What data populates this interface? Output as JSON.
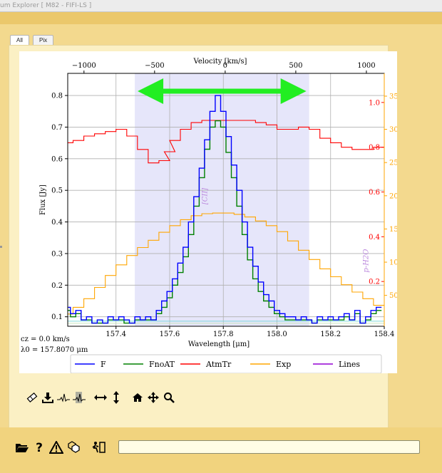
{
  "window": {
    "title": "um Explorer [ M82 - FIFI-LS ]"
  },
  "tabs": [
    {
      "label": "All",
      "active": true
    },
    {
      "label": "Pix",
      "active": false
    }
  ],
  "toolbar": {
    "icons": [
      "eraser-icon",
      "download-icon",
      "spectrum-fit-icon",
      "spectrum-select-icon",
      "horizontal-zoom-icon",
      "vertical-zoom-icon",
      "home-icon",
      "pan-icon",
      "zoom-icon"
    ]
  },
  "footer": {
    "icons": [
      "open-folder-icon",
      "help-icon",
      "warning-icon",
      "cubes-icon",
      "exit-icon"
    ],
    "command_value": ""
  },
  "colors": {
    "F": "#0000ff",
    "FnoAT": "#008000",
    "AtmTr": "#ff0000",
    "Exp": "#ffa500",
    "Lines": "#9400d3",
    "region": "#e6e6fa",
    "arrow": "#22ee22",
    "label": "#bb88dd"
  },
  "chart_data": {
    "type": "line",
    "xlabel": "Wavelength [μm]",
    "ylabel": "Flux [Jy]",
    "top_xlabel": "Velocity [km/s]",
    "xlim": [
      157.22,
      158.4
    ],
    "ylim": [
      0.07,
      0.87
    ],
    "xticks": [
      157.4,
      157.6,
      157.8,
      158.0,
      158.2,
      158.4
    ],
    "xticklabels": [
      "157.4",
      "157.6",
      "157.8",
      "158.0",
      "158.2",
      "158.4"
    ],
    "yticks": [
      0.1,
      0.2,
      0.3,
      0.4,
      0.5,
      0.6,
      0.7,
      0.8
    ],
    "yticklabels": [
      "0.1",
      "0.2",
      "0.3",
      "0.4",
      "0.5",
      "0.6",
      "0.7",
      "0.8"
    ],
    "vel_ticks": [
      -1000,
      -500,
      0,
      500,
      1000
    ],
    "vel_ticklabels": [
      "−1000",
      "−500",
      "0",
      "500",
      "1000"
    ],
    "rest_wavelength": 157.807,
    "atm_ylim": [
      0.0,
      1.13
    ],
    "atm_ticks": [
      0.2,
      0.4,
      0.6,
      0.8,
      1.0
    ],
    "atm_ticklabels": [
      "0.2",
      "0.4",
      "0.6",
      "0.8",
      "1.0"
    ],
    "exp_ylim": [
      3.5,
      384.3
    ],
    "exp_ticks": [
      50,
      100,
      150,
      200,
      250,
      300,
      350
    ],
    "exp_ticklabels": [
      "50",
      "100",
      "150",
      "200",
      "250",
      "300",
      "350"
    ],
    "region": [
      157.47,
      158.12
    ],
    "continuum": 0.086,
    "line_labels": [
      {
        "text": "[CII]",
        "x": 157.74,
        "y": 0.455
      },
      {
        "text": "p-H2O",
        "x": 158.34,
        "y": 0.24
      }
    ],
    "annotations": [
      "cz = 0.0 km/s",
      "λ0 = 157.8070 μm"
    ],
    "series": [
      {
        "name": "F",
        "axis": "flux",
        "x": [
          157.22,
          157.24,
          157.26,
          157.28,
          157.3,
          157.32,
          157.34,
          157.36,
          157.38,
          157.4,
          157.42,
          157.44,
          157.46,
          157.48,
          157.5,
          157.52,
          157.54,
          157.56,
          157.58,
          157.6,
          157.62,
          157.64,
          157.66,
          157.68,
          157.7,
          157.72,
          157.74,
          157.76,
          157.78,
          157.8,
          157.82,
          157.84,
          157.86,
          157.88,
          157.9,
          157.92,
          157.94,
          157.96,
          157.98,
          158.0,
          158.02,
          158.04,
          158.06,
          158.08,
          158.1,
          158.12,
          158.14,
          158.16,
          158.18,
          158.2,
          158.22,
          158.24,
          158.26,
          158.28,
          158.3,
          158.32,
          158.34,
          158.36,
          158.38
        ],
        "y": [
          0.13,
          0.11,
          0.12,
          0.09,
          0.1,
          0.08,
          0.09,
          0.08,
          0.1,
          0.09,
          0.1,
          0.09,
          0.08,
          0.1,
          0.09,
          0.1,
          0.09,
          0.12,
          0.15,
          0.18,
          0.22,
          0.27,
          0.32,
          0.4,
          0.48,
          0.57,
          0.66,
          0.75,
          0.8,
          0.75,
          0.67,
          0.58,
          0.5,
          0.4,
          0.32,
          0.26,
          0.21,
          0.17,
          0.15,
          0.12,
          0.11,
          0.1,
          0.1,
          0.09,
          0.1,
          0.09,
          0.08,
          0.1,
          0.09,
          0.1,
          0.09,
          0.1,
          0.11,
          0.09,
          0.12,
          0.08,
          0.1,
          0.12,
          0.13
        ]
      },
      {
        "name": "FnoAT",
        "axis": "flux",
        "x": [
          157.22,
          157.24,
          157.26,
          157.28,
          157.3,
          157.32,
          157.34,
          157.36,
          157.38,
          157.4,
          157.42,
          157.44,
          157.46,
          157.48,
          157.5,
          157.52,
          157.54,
          157.56,
          157.58,
          157.6,
          157.62,
          157.64,
          157.66,
          157.68,
          157.7,
          157.72,
          157.74,
          157.76,
          157.78,
          157.8,
          157.82,
          157.84,
          157.86,
          157.88,
          157.9,
          157.92,
          157.94,
          157.96,
          157.98,
          158.0,
          158.02,
          158.04,
          158.06,
          158.08,
          158.1,
          158.12,
          158.14,
          158.16,
          158.18,
          158.2,
          158.22,
          158.24,
          158.26,
          158.28,
          158.3,
          158.32,
          158.34,
          158.36,
          158.38
        ],
        "y": [
          0.12,
          0.1,
          0.11,
          0.09,
          0.09,
          0.08,
          0.08,
          0.08,
          0.09,
          0.09,
          0.09,
          0.08,
          0.08,
          0.09,
          0.09,
          0.09,
          0.09,
          0.11,
          0.13,
          0.16,
          0.2,
          0.24,
          0.29,
          0.36,
          0.45,
          0.54,
          0.63,
          0.7,
          0.72,
          0.7,
          0.62,
          0.54,
          0.45,
          0.36,
          0.28,
          0.22,
          0.18,
          0.15,
          0.13,
          0.11,
          0.1,
          0.09,
          0.09,
          0.09,
          0.09,
          0.09,
          0.08,
          0.09,
          0.09,
          0.09,
          0.09,
          0.09,
          0.1,
          0.09,
          0.11,
          0.08,
          0.09,
          0.11,
          0.12
        ]
      },
      {
        "name": "AtmTr",
        "axis": "atm",
        "x": [
          157.22,
          157.26,
          157.3,
          157.34,
          157.38,
          157.42,
          157.46,
          157.5,
          157.54,
          157.58,
          157.6,
          157.62,
          157.66,
          157.7,
          157.74,
          157.78,
          157.82,
          157.86,
          157.9,
          157.94,
          157.98,
          158.02,
          158.06,
          158.1,
          158.14,
          158.18,
          158.22,
          158.26,
          158.3,
          158.34,
          158.38
        ],
        "y": [
          0.82,
          0.83,
          0.85,
          0.86,
          0.87,
          0.88,
          0.85,
          0.79,
          0.73,
          0.74,
          0.78,
          0.83,
          0.88,
          0.91,
          0.92,
          0.92,
          0.92,
          0.92,
          0.92,
          0.91,
          0.9,
          0.88,
          0.88,
          0.89,
          0.88,
          0.84,
          0.82,
          0.8,
          0.79,
          0.79,
          0.8
        ]
      },
      {
        "name": "Exp",
        "axis": "exp",
        "x": [
          157.22,
          157.26,
          157.3,
          157.34,
          157.38,
          157.42,
          157.46,
          157.5,
          157.54,
          157.58,
          157.62,
          157.66,
          157.7,
          157.74,
          157.78,
          157.82,
          157.86,
          157.9,
          157.94,
          157.98,
          158.02,
          158.06,
          158.1,
          158.14,
          158.18,
          158.22,
          158.26,
          158.3,
          158.34,
          158.38
        ],
        "y": [
          22,
          32,
          45,
          62,
          80,
          96,
          110,
          122,
          133,
          145,
          155,
          164,
          170,
          173,
          174,
          174,
          172,
          168,
          162,
          155,
          146,
          132,
          118,
          104,
          90,
          78,
          66,
          55,
          45,
          35
        ]
      }
    ],
    "legend": {
      "placement": "bottom",
      "entries": [
        "F",
        "FnoAT",
        "AtmTr",
        "Exp",
        "Lines"
      ]
    }
  }
}
